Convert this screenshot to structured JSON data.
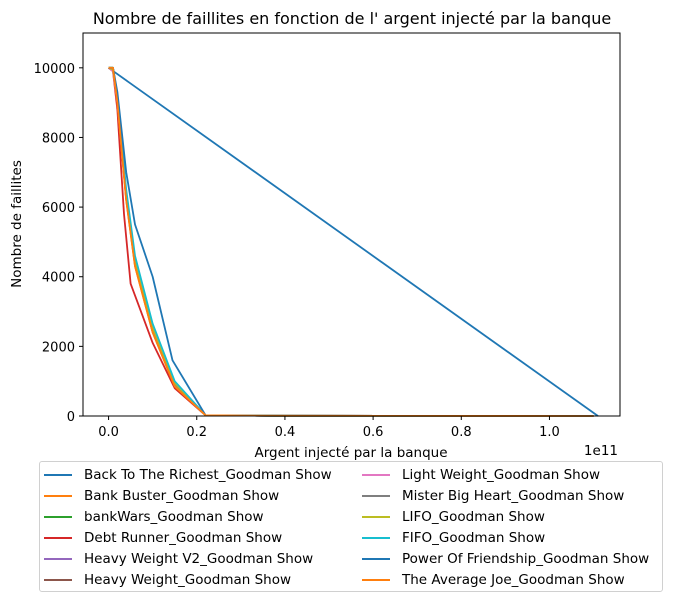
{
  "chart_data": {
    "type": "line",
    "title": "Nombre de faillites en fonction de l' argent injecté par la banque",
    "xlabel": "Argent injecté par la banque",
    "ylabel": "Nombre de faillites",
    "x_offset_text": "1e11",
    "x_ticks": [
      0.0,
      0.2,
      0.4,
      0.6,
      0.8,
      1.0
    ],
    "x_tick_labels": [
      "0.0",
      "0.2",
      "0.4",
      "0.6",
      "0.8",
      "1.0"
    ],
    "y_ticks": [
      0,
      2000,
      4000,
      6000,
      8000,
      10000
    ],
    "y_tick_labels": [
      "0",
      "2000",
      "4000",
      "6000",
      "8000",
      "10000"
    ],
    "xlim": [
      -0.058,
      1.16
    ],
    "ylim": [
      0,
      11000
    ],
    "grid": false,
    "legend_position": "below",
    "series": [
      {
        "name": "Back To The Richest_Goodman Show",
        "color": "#1f77b4",
        "x": [
          0.0,
          1.11
        ],
        "y": [
          10000,
          0
        ]
      },
      {
        "name": "Bank Buster_Goodman Show",
        "color": "#ff7f0e",
        "x": [
          0.0,
          0.01,
          0.02,
          0.04,
          0.06,
          0.1,
          0.15,
          0.22,
          0.4,
          0.8,
          1.1
        ],
        "y": [
          10000,
          10000,
          9000,
          6200,
          4300,
          2400,
          850,
          20,
          5,
          2,
          0
        ]
      },
      {
        "name": "bankWars_Goodman Show",
        "color": "#2ca02c",
        "x": [
          0.0,
          0.01,
          0.02,
          0.04,
          0.06,
          0.1,
          0.15,
          0.22,
          0.4,
          0.8,
          1.1
        ],
        "y": [
          10000,
          10000,
          9100,
          6300,
          4400,
          2450,
          900,
          20,
          5,
          2,
          0
        ]
      },
      {
        "name": "Debt Runner_Goodman Show",
        "color": "#d62728",
        "x": [
          0.0,
          0.01,
          0.02,
          0.035,
          0.05,
          0.1,
          0.15,
          0.22,
          0.4,
          0.8,
          1.1
        ],
        "y": [
          10000,
          9900,
          8800,
          5800,
          3800,
          2100,
          800,
          20,
          5,
          2,
          0
        ]
      },
      {
        "name": "Heavy Weight V2_Goodman Show",
        "color": "#9467bd",
        "x": [
          0.0,
          0.01,
          0.02,
          0.04,
          0.06,
          0.1,
          0.15,
          0.22,
          0.4,
          0.8,
          1.1
        ],
        "y": [
          10000,
          9950,
          9050,
          6250,
          4350,
          2420,
          880,
          20,
          5,
          2,
          0
        ]
      },
      {
        "name": "Heavy Weight_Goodman Show",
        "color": "#8c564b",
        "x": [
          0.0,
          0.01,
          0.02,
          0.04,
          0.06,
          0.1,
          0.15,
          0.22,
          0.4,
          0.8,
          1.1
        ],
        "y": [
          10000,
          9950,
          9050,
          6250,
          4350,
          2420,
          880,
          20,
          5,
          2,
          0
        ]
      },
      {
        "name": "Light Weight_Goodman Show",
        "color": "#e377c2",
        "x": [
          0.0,
          0.01,
          0.02,
          0.04,
          0.06,
          0.1,
          0.15,
          0.22,
          0.4,
          0.8,
          1.1
        ],
        "y": [
          10000,
          9900,
          9000,
          6300,
          4400,
          2500,
          900,
          20,
          5,
          2,
          0
        ]
      },
      {
        "name": "Mister Big Heart_Goodman Show",
        "color": "#7f7f7f",
        "x": [
          0.0,
          0.01,
          0.02,
          0.04,
          0.06,
          0.1,
          0.15,
          0.22,
          0.4,
          0.8,
          1.1
        ],
        "y": [
          10000,
          9950,
          9100,
          6350,
          4450,
          2500,
          920,
          20,
          5,
          2,
          0
        ]
      },
      {
        "name": "LIFO_Goodman Show",
        "color": "#bcbd22",
        "x": [
          0.0,
          0.01,
          0.02,
          0.04,
          0.06,
          0.1,
          0.15,
          0.22,
          0.4,
          0.8,
          1.1
        ],
        "y": [
          10000,
          9950,
          9150,
          6400,
          4500,
          2550,
          950,
          20,
          5,
          2,
          0
        ]
      },
      {
        "name": "FIFO_Goodman Show",
        "color": "#17becf",
        "x": [
          0.0,
          0.01,
          0.02,
          0.04,
          0.06,
          0.1,
          0.15,
          0.22,
          0.4,
          0.8,
          1.1
        ],
        "y": [
          10000,
          10000,
          9200,
          6500,
          4600,
          2650,
          1000,
          20,
          5,
          2,
          0
        ]
      },
      {
        "name": "Power Of Friendship_Goodman Show",
        "color": "#1f77b4",
        "x": [
          0.0,
          0.01,
          0.02,
          0.04,
          0.06,
          0.1,
          0.145,
          0.22,
          0.4,
          0.8,
          1.1
        ],
        "y": [
          10000,
          10000,
          9300,
          7000,
          5500,
          4000,
          1600,
          20,
          5,
          2,
          0
        ]
      },
      {
        "name": "The Average Joe_Goodman Show",
        "color": "#ff7f0e",
        "x": [
          0.0,
          0.01,
          0.02,
          0.04,
          0.06,
          0.1,
          0.15,
          0.22,
          0.4,
          0.8,
          1.1
        ],
        "y": [
          10000,
          10000,
          9000,
          6200,
          4300,
          2400,
          850,
          20,
          5,
          2,
          0
        ]
      }
    ]
  }
}
